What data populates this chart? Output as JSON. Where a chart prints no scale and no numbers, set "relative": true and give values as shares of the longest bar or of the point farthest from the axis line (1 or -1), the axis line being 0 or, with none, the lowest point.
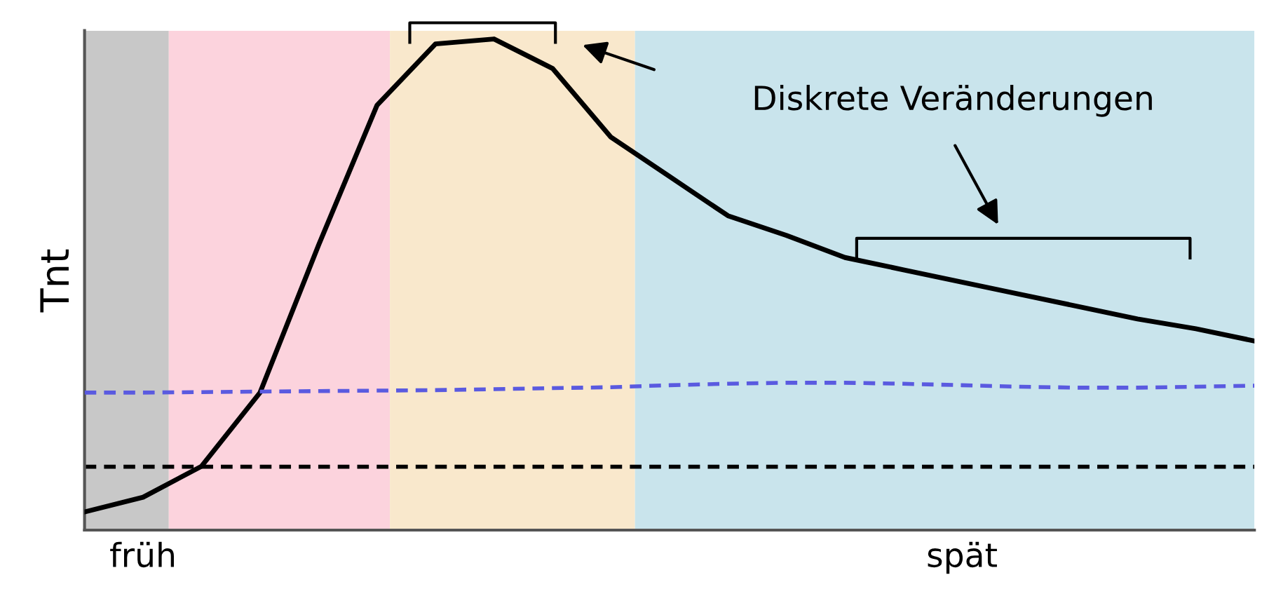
{
  "chart_data": {
    "type": "line",
    "relative": true,
    "ylabel": "Tnt",
    "categories": [
      null,
      "früh",
      null,
      null,
      null,
      null,
      null,
      null,
      null,
      null,
      null,
      null,
      null,
      null,
      null,
      "spät",
      null,
      null,
      null,
      null,
      null
    ],
    "tick_labels": "x",
    "series": [
      {
        "color": "#000000",
        "line_style": "solid",
        "values": [
          0.037,
          0.067,
          0.13,
          0.28,
          0.58,
          0.865,
          0.99,
          1.0,
          0.94,
          0.8,
          0.72,
          0.64,
          0.6,
          0.555,
          0.53,
          0.505,
          0.48,
          0.455,
          0.43,
          0.41,
          0.385
        ]
      },
      {
        "color": "#5a5ae0",
        "line_style": "dashed",
        "values": [
          0.28,
          0.28,
          0.281,
          0.282,
          0.283,
          0.284,
          0.285,
          0.287,
          0.289,
          0.291,
          0.295,
          0.298,
          0.3,
          0.3,
          0.298,
          0.295,
          0.292,
          0.29,
          0.29,
          0.292,
          0.294
        ]
      }
    ],
    "ref_lines": [
      {
        "axis": "y",
        "value": 0.129,
        "color": "#000000",
        "line_style": "dashed"
      }
    ],
    "annotations": [
      "Diskrete Veränderungen"
    ],
    "grid": false,
    "legend": false
  }
}
